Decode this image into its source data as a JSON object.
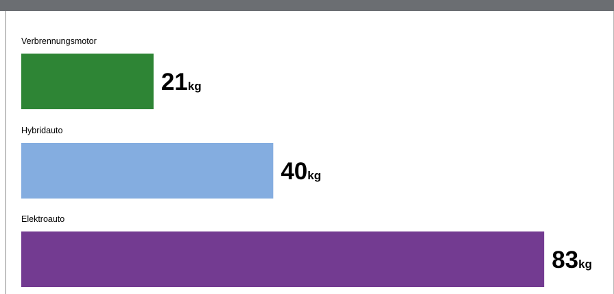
{
  "chart_data": {
    "type": "bar",
    "orientation": "horizontal",
    "categories": [
      "Verbrennungsmotor",
      "Hybridauto",
      "Elektroauto"
    ],
    "values": [
      21,
      40,
      83
    ],
    "unit": "kg",
    "colors": [
      "#2e8535",
      "#84ade0",
      "#733b91"
    ],
    "title": "",
    "xlabel": "",
    "ylabel": "",
    "grid": false
  },
  "colors": {
    "top_band": "#6b6e72",
    "background": "#ffffff"
  }
}
